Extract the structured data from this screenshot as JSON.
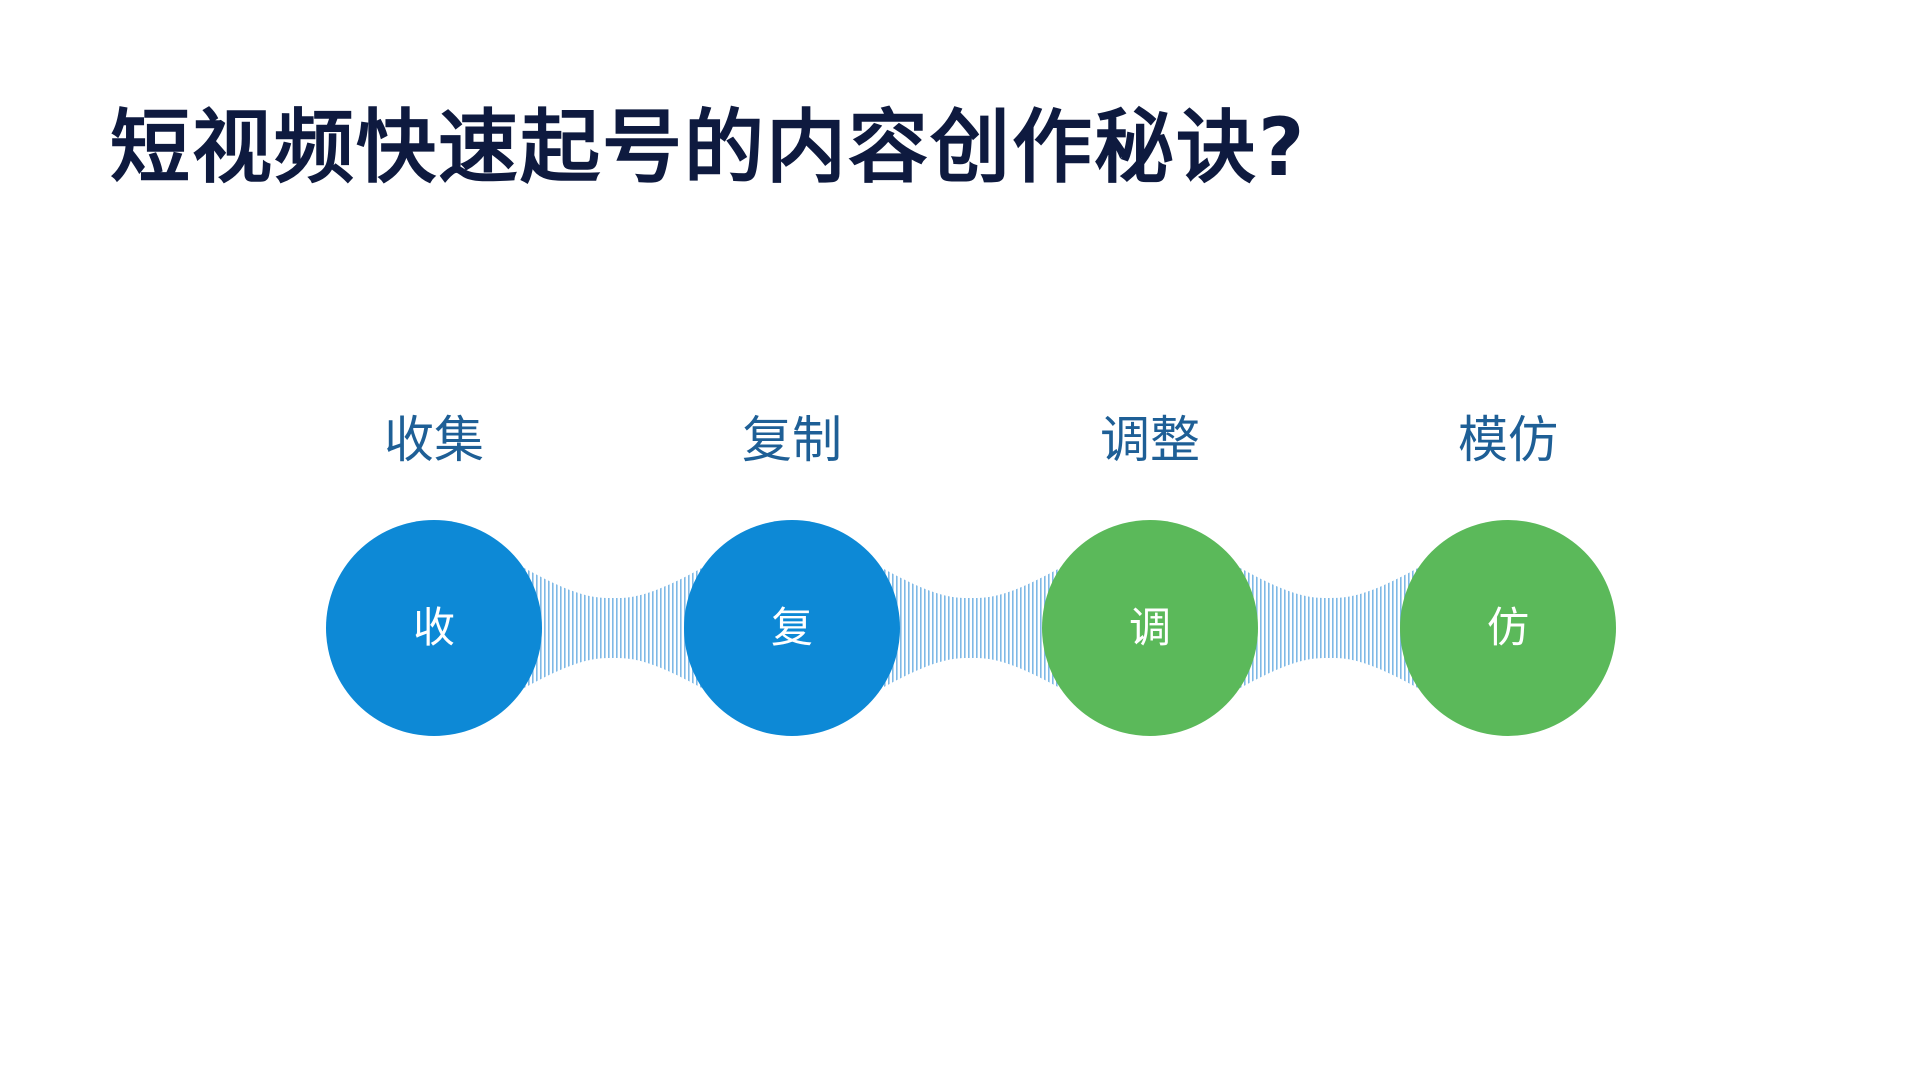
{
  "title": "短视频快速起号的内容创作秘诀?",
  "colors": {
    "title": "#0e1a3f",
    "label": "#1e5f96",
    "blue": "#0d89d6",
    "green": "#5bb95a",
    "connector": "#7fb9e6"
  },
  "steps": [
    {
      "label": "收集",
      "node_text": "收",
      "color": "blue"
    },
    {
      "label": "复制",
      "node_text": "复",
      "color": "blue"
    },
    {
      "label": "调整",
      "node_text": "调",
      "color": "green"
    },
    {
      "label": "模仿",
      "node_text": "仿",
      "color": "green"
    }
  ]
}
